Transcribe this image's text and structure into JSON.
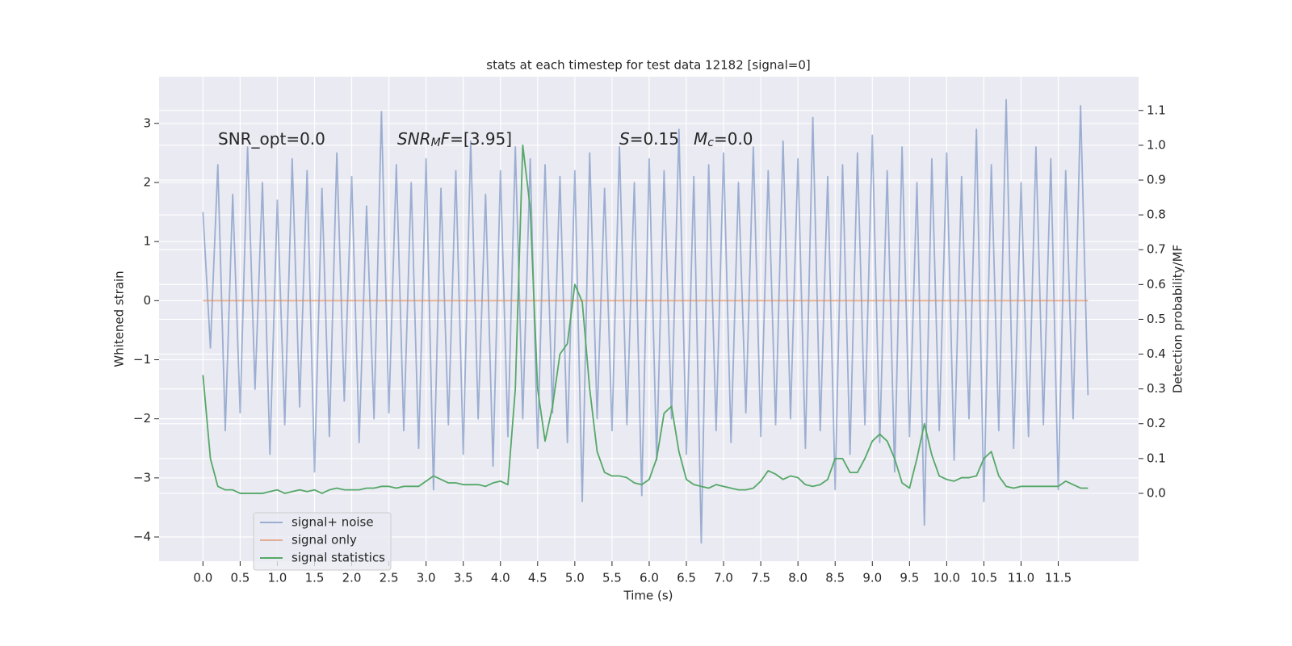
{
  "chart_data": {
    "type": "line",
    "title": "stats at each timestep for test data 12182 [signal=0]",
    "xlabel": "Time (s)",
    "ylabel": "Whitened strain",
    "y2label": "Detection probability/MF",
    "annotations": [
      [
        {
          "t": "SNR_opt=0.0"
        }
      ],
      [
        {
          "t": "SNR",
          "i": true
        },
        {
          "t": "M",
          "i": true,
          "sub": true
        },
        {
          "t": "F",
          "i": true
        },
        {
          "t": "=[3.95]"
        }
      ],
      [
        {
          "t": "S",
          "i": true
        },
        {
          "t": "=0.15"
        }
      ],
      [
        {
          "t": "M",
          "i": true
        },
        {
          "t": "c",
          "i": true,
          "sub": true
        },
        {
          "t": "=0.0"
        }
      ]
    ],
    "x": [
      0.0,
      0.1,
      0.2,
      0.3,
      0.4,
      0.5,
      0.6,
      0.7,
      0.8,
      0.9,
      1.0,
      1.1,
      1.2,
      1.3,
      1.4,
      1.5,
      1.6,
      1.7,
      1.8,
      1.9,
      2.0,
      2.1,
      2.2,
      2.3,
      2.4,
      2.5,
      2.6,
      2.7,
      2.8,
      2.9,
      3.0,
      3.1,
      3.2,
      3.3,
      3.4,
      3.5,
      3.6,
      3.7,
      3.8,
      3.9,
      4.0,
      4.1,
      4.2,
      4.3,
      4.4,
      4.5,
      4.6,
      4.7,
      4.8,
      4.9,
      5.0,
      5.1,
      5.2,
      5.3,
      5.4,
      5.5,
      5.6,
      5.7,
      5.8,
      5.9,
      6.0,
      6.1,
      6.2,
      6.3,
      6.4,
      6.5,
      6.6,
      6.7,
      6.8,
      6.9,
      7.0,
      7.1,
      7.2,
      7.3,
      7.4,
      7.5,
      7.6,
      7.7,
      7.8,
      7.9,
      8.0,
      8.1,
      8.2,
      8.3,
      8.4,
      8.5,
      8.6,
      8.7,
      8.8,
      8.9,
      9.0,
      9.1,
      9.2,
      9.3,
      9.4,
      9.5,
      9.6,
      9.7,
      9.8,
      9.9,
      10.0,
      10.1,
      10.2,
      10.3,
      10.4,
      10.5,
      10.6,
      10.7,
      10.8,
      10.9,
      11.0,
      11.1,
      11.2,
      11.3,
      11.4,
      11.5,
      11.6,
      11.7,
      11.8,
      11.9
    ],
    "series": [
      {
        "name": "signal+ noise",
        "color": "#4c72b0",
        "opacity": 0.5,
        "values": [
          1.5,
          -0.8,
          2.3,
          -2.2,
          1.8,
          -1.9,
          2.6,
          -1.5,
          2.0,
          -2.6,
          1.7,
          -2.1,
          2.4,
          -1.8,
          2.2,
          -2.9,
          1.9,
          -2.3,
          2.5,
          -1.7,
          2.1,
          -2.4,
          1.6,
          -2.0,
          3.2,
          -1.9,
          2.3,
          -2.2,
          2.0,
          -2.5,
          2.4,
          -3.2,
          1.9,
          -2.1,
          2.2,
          -2.6,
          2.7,
          -2.0,
          1.8,
          -2.8,
          2.2,
          -2.3,
          2.6,
          -2.0,
          2.4,
          -2.5,
          2.3,
          -1.9,
          2.1,
          -2.4,
          2.2,
          -3.4,
          2.5,
          -2.0,
          1.9,
          -2.2,
          2.6,
          -2.1,
          2.0,
          -3.3,
          2.4,
          -2.7,
          2.2,
          -2.0,
          2.9,
          -2.6,
          2.1,
          -4.1,
          2.3,
          -2.2,
          2.5,
          -2.4,
          2.0,
          -1.9,
          2.6,
          -2.3,
          2.2,
          -2.1,
          2.7,
          -2.0,
          2.4,
          -2.5,
          3.1,
          -2.2,
          2.1,
          -3.2,
          2.3,
          -2.6,
          2.5,
          -2.1,
          2.8,
          -2.4,
          2.2,
          -2.9,
          2.6,
          -2.3,
          2.0,
          -3.8,
          2.4,
          -2.2,
          2.5,
          -2.7,
          2.1,
          -2.0,
          2.9,
          -3.4,
          2.3,
          -2.2,
          3.4,
          -2.5,
          2.0,
          -2.3,
          2.6,
          -2.1,
          2.4,
          -3.2,
          2.2,
          -2.0,
          3.3,
          -1.6
        ]
      },
      {
        "name": "signal only",
        "color": "#dd8452",
        "opacity": 0.6,
        "values": [
          0,
          0,
          0,
          0,
          0,
          0,
          0,
          0,
          0,
          0,
          0,
          0,
          0,
          0,
          0,
          0,
          0,
          0,
          0,
          0,
          0,
          0,
          0,
          0,
          0,
          0,
          0,
          0,
          0,
          0,
          0,
          0,
          0,
          0,
          0,
          0,
          0,
          0,
          0,
          0,
          0,
          0,
          0,
          0,
          0,
          0,
          0,
          0,
          0,
          0,
          0,
          0,
          0,
          0,
          0,
          0,
          0,
          0,
          0,
          0,
          0,
          0,
          0,
          0,
          0,
          0,
          0,
          0,
          0,
          0,
          0,
          0,
          0,
          0,
          0,
          0,
          0,
          0,
          0,
          0,
          0,
          0,
          0,
          0,
          0,
          0,
          0,
          0,
          0,
          0,
          0,
          0,
          0,
          0,
          0,
          0,
          0,
          0,
          0,
          0,
          0,
          0,
          0,
          0,
          0,
          0,
          0,
          0,
          0,
          0,
          0,
          0,
          0,
          0,
          0,
          0,
          0,
          0,
          0,
          0
        ]
      },
      {
        "name": "signal statistics",
        "color": "#55a868",
        "opacity": 1,
        "axis": "y2",
        "values": [
          0.34,
          0.1,
          0.02,
          0.01,
          0.01,
          0.0,
          0.0,
          0.0,
          0.0,
          0.005,
          0.01,
          0.0,
          0.005,
          0.01,
          0.005,
          0.01,
          0.0,
          0.01,
          0.015,
          0.01,
          0.01,
          0.01,
          0.015,
          0.015,
          0.02,
          0.02,
          0.015,
          0.02,
          0.02,
          0.02,
          0.035,
          0.05,
          0.04,
          0.03,
          0.03,
          0.025,
          0.025,
          0.025,
          0.02,
          0.03,
          0.035,
          0.025,
          0.3,
          1.0,
          0.82,
          0.3,
          0.15,
          0.25,
          0.4,
          0.43,
          0.6,
          0.55,
          0.3,
          0.12,
          0.06,
          0.05,
          0.05,
          0.045,
          0.03,
          0.025,
          0.04,
          0.1,
          0.23,
          0.25,
          0.12,
          0.04,
          0.025,
          0.02,
          0.015,
          0.025,
          0.02,
          0.015,
          0.01,
          0.01,
          0.015,
          0.035,
          0.065,
          0.055,
          0.04,
          0.05,
          0.045,
          0.025,
          0.02,
          0.025,
          0.04,
          0.1,
          0.1,
          0.06,
          0.06,
          0.1,
          0.15,
          0.17,
          0.15,
          0.1,
          0.03,
          0.015,
          0.1,
          0.2,
          0.11,
          0.05,
          0.04,
          0.035,
          0.045,
          0.045,
          0.05,
          0.1,
          0.12,
          0.05,
          0.02,
          0.015,
          0.02,
          0.02,
          0.02,
          0.02,
          0.02,
          0.02,
          0.035,
          0.025,
          0.015,
          0.015
        ]
      }
    ],
    "xlim": [
      -0.59,
      12.58
    ],
    "xticks": [
      {
        "value": 0,
        "label": "0.0"
      },
      {
        "value": 0.5,
        "label": "0.5"
      },
      {
        "value": 1,
        "label": "1.0"
      },
      {
        "value": 1.5,
        "label": "1.5"
      },
      {
        "value": 2,
        "label": "2.0"
      },
      {
        "value": 2.5,
        "label": "2.5"
      },
      {
        "value": 3,
        "label": "3.0"
      },
      {
        "value": 3.5,
        "label": "3.5"
      },
      {
        "value": 4,
        "label": "4.0"
      },
      {
        "value": 4.5,
        "label": "4.5"
      },
      {
        "value": 5,
        "label": "5.0"
      },
      {
        "value": 5.5,
        "label": "5.5"
      },
      {
        "value": 6,
        "label": "6.0"
      },
      {
        "value": 6.5,
        "label": "6.5"
      },
      {
        "value": 7,
        "label": "7.0"
      },
      {
        "value": 7.5,
        "label": "7.5"
      },
      {
        "value": 8,
        "label": "8.0"
      },
      {
        "value": 8.5,
        "label": "8.5"
      },
      {
        "value": 9,
        "label": "9.0"
      },
      {
        "value": 9.5,
        "label": "9.5"
      },
      {
        "value": 10,
        "label": "10.0"
      },
      {
        "value": 10.5,
        "label": "10.5"
      },
      {
        "value": 11,
        "label": "11.0"
      },
      {
        "value": 11.5,
        "label": "11.5"
      }
    ],
    "ylim": [
      -4.41,
      3.79
    ],
    "yticks": [
      {
        "value": -4,
        "label": "−4"
      },
      {
        "value": -3,
        "label": "−3"
      },
      {
        "value": -2,
        "label": "−2"
      },
      {
        "value": -1,
        "label": "−1"
      },
      0,
      1,
      2,
      3
    ],
    "y2lim": [
      -0.195,
      1.197
    ],
    "y2ticks": [
      {
        "value": 0,
        "label": "0.0"
      },
      {
        "value": 0.1,
        "label": "0.1"
      },
      {
        "value": 0.2,
        "label": "0.2"
      },
      {
        "value": 0.3,
        "label": "0.3"
      },
      {
        "value": 0.4,
        "label": "0.4"
      },
      {
        "value": 0.5,
        "label": "0.5"
      },
      {
        "value": 0.6,
        "label": "0.6"
      },
      {
        "value": 0.7,
        "label": "0.7"
      },
      {
        "value": 0.8,
        "label": "0.8"
      },
      {
        "value": 0.9,
        "label": "0.9"
      },
      {
        "value": 1,
        "label": "1.0"
      },
      {
        "value": 1.1,
        "label": "1.1"
      }
    ],
    "grid": true,
    "legend": "lower left"
  }
}
